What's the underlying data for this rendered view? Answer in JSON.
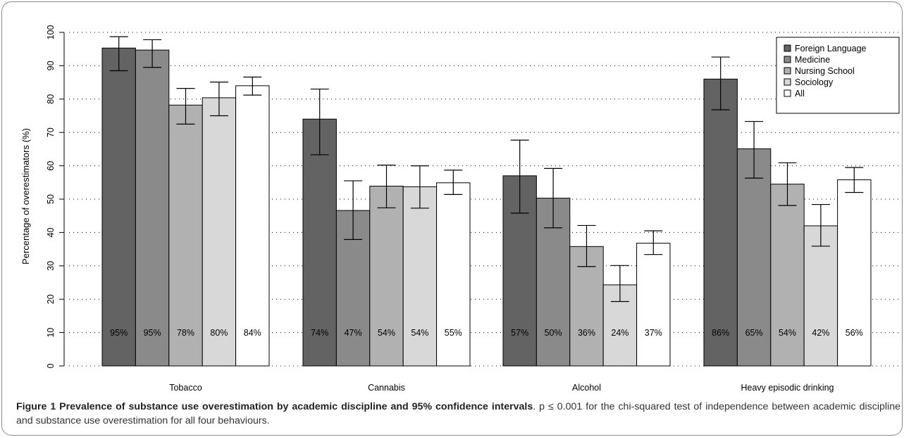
{
  "chart_data": {
    "type": "bar",
    "ylabel": "Percentage of overestimators (%)",
    "xlabel": "",
    "ylim": [
      0,
      100
    ],
    "yticks": [
      0,
      10,
      20,
      30,
      40,
      50,
      60,
      70,
      80,
      90,
      100
    ],
    "grid": "horizontal dotted",
    "legend_position": "top-right",
    "categories": [
      "Tobacco",
      "Cannabis",
      "Alcohol",
      "Heavy episodic drinking"
    ],
    "series": [
      {
        "name": "Foreign Language",
        "color": "#636363",
        "values": [
          95.3,
          74.0,
          57.0,
          86.0
        ],
        "ci_low": [
          88.5,
          63.3,
          45.8,
          76.8
        ],
        "ci_high": [
          98.7,
          83.0,
          67.7,
          92.6
        ],
        "labels": [
          "95%",
          "74%",
          "57%",
          "86%"
        ]
      },
      {
        "name": "Medicine",
        "color": "#8a8a8a",
        "values": [
          94.7,
          46.6,
          50.3,
          65.1
        ],
        "ci_low": [
          89.5,
          37.9,
          41.4,
          56.3
        ],
        "ci_high": [
          97.8,
          55.5,
          59.2,
          73.3
        ],
        "labels": [
          "95%",
          "47%",
          "50%",
          "65%"
        ]
      },
      {
        "name": "Nursing School",
        "color": "#b1b1b1",
        "values": [
          78.2,
          53.9,
          35.8,
          54.5
        ],
        "ci_low": [
          72.5,
          47.4,
          29.8,
          48.1
        ],
        "ci_high": [
          83.2,
          60.2,
          42.1,
          60.9
        ],
        "labels": [
          "78%",
          "54%",
          "36%",
          "54%"
        ]
      },
      {
        "name": "Sociology",
        "color": "#d8d8d8",
        "values": [
          80.4,
          53.7,
          24.3,
          42.0
        ],
        "ci_low": [
          75.0,
          47.3,
          19.3,
          35.9
        ],
        "ci_high": [
          85.1,
          60.0,
          30.1,
          48.4
        ],
        "labels": [
          "80%",
          "54%",
          "24%",
          "42%"
        ]
      },
      {
        "name": "All",
        "color": "#ffffff",
        "values": [
          84.0,
          54.9,
          36.8,
          55.8
        ],
        "ci_low": [
          81.2,
          51.4,
          33.4,
          52.0
        ],
        "ci_high": [
          86.6,
          58.7,
          40.5,
          59.5
        ],
        "labels": [
          "84%",
          "55%",
          "37%",
          "56%"
        ]
      }
    ]
  },
  "caption": {
    "title": "Figure 1 Prevalence of substance use overestimation by academic discipline and 95% confidence intervals",
    "text": ". p ≤ 0.001 for the chi-squared test of independence between academic discipline and substance use overestimation for all four behaviours."
  }
}
